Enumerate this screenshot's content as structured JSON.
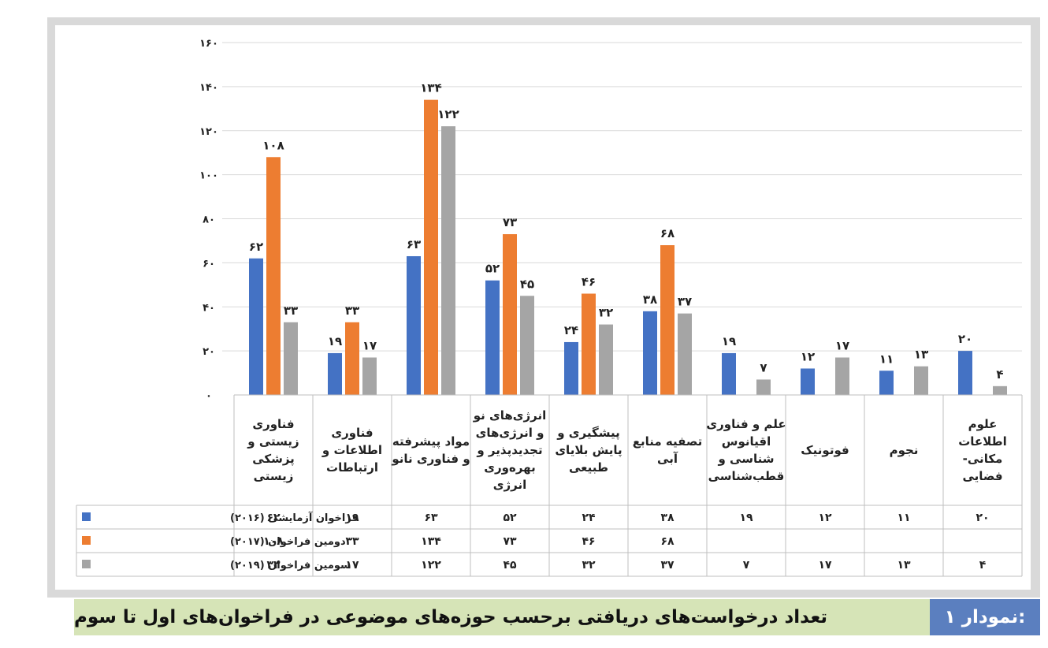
{
  "figure": {
    "caption_number": "نمودار ۱:",
    "caption_title": "تعداد درخواست‌های دریافتی برحسب حوزه‌های موضوعی در فراخوان‌های اول تا سوم"
  },
  "colors": {
    "series1": "#4472c4",
    "series2": "#ed7d31",
    "series3": "#a5a5a5"
  },
  "chart_data": {
    "type": "bar",
    "title": "",
    "xlabel": "",
    "ylabel": "",
    "ylim": [
      0,
      160
    ],
    "yticks": [
      0,
      20,
      40,
      60,
      80,
      100,
      120,
      140,
      160
    ],
    "ytick_labels": [
      "۰",
      "۲۰",
      "۴۰",
      "۶۰",
      "۸۰",
      "۱۰۰",
      "۱۲۰",
      "۱۴۰",
      "۱۶۰"
    ],
    "grid": true,
    "legend_placement": "data-table-left",
    "categories": [
      [
        "فناوری",
        "زیستی و",
        "پزشکی",
        "زیستی"
      ],
      [
        "فناوری",
        "اطلاعات و",
        "ارتباطات"
      ],
      [
        "مواد پیشرفته",
        "و فناوری نانو"
      ],
      [
        "انرژی‌های نو",
        "و انرژی‌های",
        "تجدیدپذیر و",
        "بهره‌وری",
        "انرژی"
      ],
      [
        "پیشگیری و",
        "پایش بلایای",
        "طبیعی"
      ],
      [
        "تصفیه منابع",
        "آبی"
      ],
      [
        "علم و فناوری",
        "اقیانوس",
        "شناسی و",
        "قطب‌شناسی"
      ],
      [
        "فوتونیک"
      ],
      [
        "نجوم"
      ],
      [
        "علوم",
        "اطلاعات",
        "مکانی-",
        "فضایی"
      ]
    ],
    "series": [
      {
        "name": "فراخوان آزمایشی (۲۰۱۶)",
        "values": [
          62,
          19,
          63,
          52,
          24,
          38,
          19,
          12,
          11,
          20
        ],
        "labels": [
          "۶۲",
          "۱۹",
          "۶۳",
          "۵۲",
          "۲۴",
          "۳۸",
          "۱۹",
          "۱۲",
          "۱۱",
          "۲۰"
        ]
      },
      {
        "name": "دومین فراخوان (۲۰۱۷)",
        "values": [
          108,
          33,
          134,
          73,
          46,
          68,
          null,
          null,
          null,
          null
        ],
        "labels": [
          "۱۰۸",
          "۳۳",
          "۱۳۴",
          "۷۳",
          "۴۶",
          "۶۸",
          "",
          "",
          "",
          ""
        ]
      },
      {
        "name": "سومین فراخوان (۲۰۱۹)",
        "values": [
          33,
          17,
          122,
          45,
          32,
          37,
          7,
          17,
          13,
          4
        ],
        "labels": [
          "۳۳",
          "۱۷",
          "۱۲۲",
          "۴۵",
          "۳۲",
          "۳۷",
          "۷",
          "۱۷",
          "۱۳",
          "۴"
        ]
      }
    ]
  }
}
